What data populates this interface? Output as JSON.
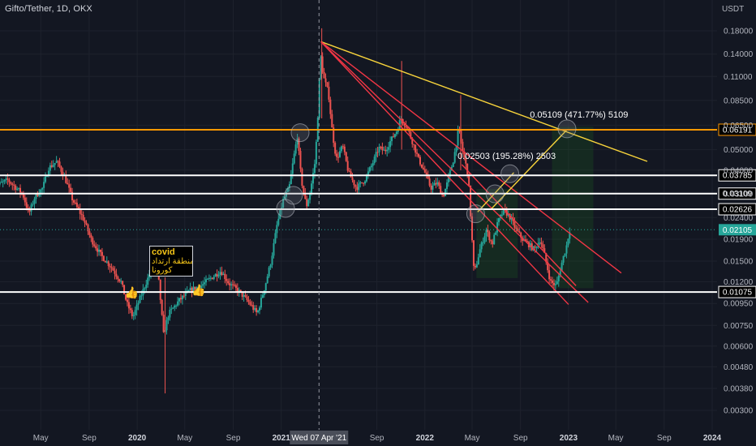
{
  "chart_data": {
    "type": "candlestick",
    "title": "Gifto/Tether, 1D, OKX",
    "y_unit": "USDT",
    "y_scale": "log",
    "ylim": [
      0.0026,
      0.245
    ],
    "y_ticks": [
      "0.18000",
      "0.14000",
      "0.11000",
      "0.08500",
      "0.06500",
      "0.05000",
      "0.04000",
      "0.03100",
      "0.02400",
      "0.01900",
      "0.01500",
      "0.01200",
      "0.00950",
      "0.00750",
      "0.00600",
      "0.00480",
      "0.00380",
      "0.00300"
    ],
    "x_ticks": [
      "May",
      "Sep",
      "2020",
      "May",
      "Sep",
      "2021",
      "Wed 07 Apr '21",
      "Sep",
      "2022",
      "May",
      "Sep",
      "2023",
      "May",
      "Sep",
      "2024"
    ],
    "x_range": [
      "2019-01-01",
      "2024-01-01"
    ],
    "cursor_date": "2021-04-07",
    "current_price": "0.02105",
    "levels": [
      {
        "value": "0.06191",
        "color": "#ff9800"
      },
      {
        "value": "0.03785",
        "color": "#ffffff"
      },
      {
        "value": "0.03109",
        "color": "#ffffff"
      },
      {
        "value": "0.02626",
        "color": "#ffffff"
      },
      {
        "value": "0.01075",
        "color": "#ffffff"
      }
    ],
    "measure_labels": [
      "0.05109 (471.77%) 5109",
      "0.02503 (195.28%) 2503"
    ],
    "note": {
      "title": "covid",
      "line1": "منطقة ارتداد",
      "line2": "كورونا"
    },
    "price_path": [
      [
        "2019-01-01",
        0.033
      ],
      [
        "2019-02-10",
        0.036
      ],
      [
        "2019-03-20",
        0.031
      ],
      [
        "2019-04-05",
        0.025
      ],
      [
        "2019-04-20",
        0.03
      ],
      [
        "2019-05-10",
        0.033
      ],
      [
        "2019-05-25",
        0.041
      ],
      [
        "2019-06-15",
        0.044
      ],
      [
        "2019-07-05",
        0.037
      ],
      [
        "2019-07-25",
        0.029
      ],
      [
        "2019-08-20",
        0.024
      ],
      [
        "2019-09-10",
        0.019
      ],
      [
        "2019-10-05",
        0.016
      ],
      [
        "2019-11-01",
        0.014
      ],
      [
        "2019-11-25",
        0.012
      ],
      [
        "2019-12-10",
        0.0095
      ],
      [
        "2019-12-25",
        0.0082
      ],
      [
        "2020-01-10",
        0.0098
      ],
      [
        "2020-02-05",
        0.013
      ],
      [
        "2020-02-25",
        0.0145
      ],
      [
        "2020-03-12",
        0.0068
      ],
      [
        "2020-03-25",
        0.0085
      ],
      [
        "2020-04-20",
        0.0098
      ],
      [
        "2020-05-20",
        0.011
      ],
      [
        "2020-06-15",
        0.0115
      ],
      [
        "2020-07-10",
        0.0125
      ],
      [
        "2020-08-05",
        0.0135
      ],
      [
        "2020-08-25",
        0.0118
      ],
      [
        "2020-09-20",
        0.0108
      ],
      [
        "2020-10-15",
        0.0096
      ],
      [
        "2020-11-05",
        0.0085
      ],
      [
        "2020-11-25",
        0.0115
      ],
      [
        "2020-12-10",
        0.015
      ],
      [
        "2020-12-25",
        0.022
      ],
      [
        "2021-01-10",
        0.029
      ],
      [
        "2021-01-25",
        0.033
      ],
      [
        "2021-02-05",
        0.045
      ],
      [
        "2021-02-15",
        0.058
      ],
      [
        "2021-02-25",
        0.036
      ],
      [
        "2021-03-10",
        0.027
      ],
      [
        "2021-03-20",
        0.032
      ],
      [
        "2021-04-01",
        0.044
      ],
      [
        "2021-04-07",
        0.066
      ],
      [
        "2021-04-15",
        0.14
      ],
      [
        "2021-04-22",
        0.11
      ],
      [
        "2021-05-05",
        0.092
      ],
      [
        "2021-05-15",
        0.06
      ],
      [
        "2021-05-25",
        0.045
      ],
      [
        "2021-06-10",
        0.052
      ],
      [
        "2021-06-25",
        0.039
      ],
      [
        "2021-07-15",
        0.033
      ],
      [
        "2021-08-05",
        0.036
      ],
      [
        "2021-08-25",
        0.043
      ],
      [
        "2021-09-10",
        0.051
      ],
      [
        "2021-09-25",
        0.049
      ],
      [
        "2021-10-10",
        0.055
      ],
      [
        "2021-10-25",
        0.061
      ],
      [
        "2021-11-05",
        0.07
      ],
      [
        "2021-11-20",
        0.064
      ],
      [
        "2021-12-05",
        0.054
      ],
      [
        "2021-12-20",
        0.045
      ],
      [
        "2022-01-05",
        0.039
      ],
      [
        "2022-01-20",
        0.033
      ],
      [
        "2022-02-05",
        0.035
      ],
      [
        "2022-02-20",
        0.03
      ],
      [
        "2022-03-05",
        0.036
      ],
      [
        "2022-03-20",
        0.046
      ],
      [
        "2022-04-01",
        0.063
      ],
      [
        "2022-04-10",
        0.05
      ],
      [
        "2022-04-25",
        0.038
      ],
      [
        "2022-05-10",
        0.013
      ],
      [
        "2022-05-25",
        0.017
      ],
      [
        "2022-06-10",
        0.021
      ],
      [
        "2022-06-25",
        0.018
      ],
      [
        "2022-07-10",
        0.023
      ],
      [
        "2022-07-25",
        0.026
      ],
      [
        "2022-08-10",
        0.024
      ],
      [
        "2022-08-25",
        0.021
      ],
      [
        "2022-09-10",
        0.019
      ],
      [
        "2022-09-25",
        0.018
      ],
      [
        "2022-10-10",
        0.017
      ],
      [
        "2022-10-25",
        0.019
      ],
      [
        "2022-11-05",
        0.016
      ],
      [
        "2022-11-20",
        0.012
      ],
      [
        "2022-12-05",
        0.0115
      ],
      [
        "2022-12-20",
        0.015
      ],
      [
        "2023-01-01",
        0.018
      ],
      [
        "2023-01-07",
        0.021
      ]
    ]
  }
}
